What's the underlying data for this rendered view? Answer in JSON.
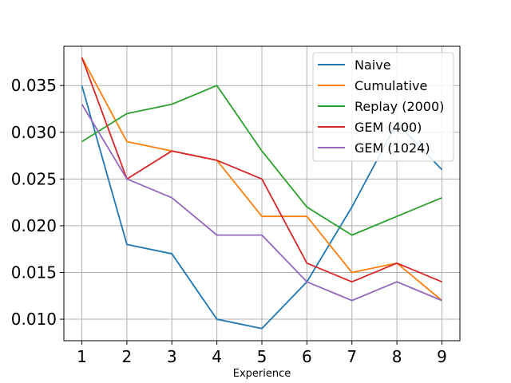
{
  "chart_data": {
    "type": "line",
    "title": "",
    "xlabel": "Experience",
    "ylabel": "",
    "x": [
      1,
      2,
      3,
      4,
      5,
      6,
      7,
      8,
      9
    ],
    "xlim": [
      0.6,
      9.4
    ],
    "ylim": [
      0.0077,
      0.0392
    ],
    "xticks": [
      "1",
      "2",
      "3",
      "4",
      "5",
      "6",
      "7",
      "8",
      "9"
    ],
    "yticks": [
      0.01,
      0.015,
      0.02,
      0.025,
      0.03,
      0.035
    ],
    "ytick_labels": [
      "0.010",
      "0.015",
      "0.020",
      "0.025",
      "0.030",
      "0.035"
    ],
    "grid": true,
    "legend_position": "top-right",
    "series": [
      {
        "name": "Naive",
        "color": "#1f77b4",
        "values": [
          0.035,
          0.018,
          0.017,
          0.01,
          0.009,
          0.014,
          0.022,
          0.031,
          0.026
        ]
      },
      {
        "name": "Cumulative",
        "color": "#ff7f0e",
        "values": [
          0.038,
          0.029,
          0.028,
          0.027,
          0.021,
          0.021,
          0.015,
          0.016,
          0.012
        ]
      },
      {
        "name": "Replay (2000)",
        "color": "#2ca02c",
        "values": [
          0.029,
          0.032,
          0.033,
          0.035,
          0.028,
          0.022,
          0.019,
          0.021,
          0.023
        ]
      },
      {
        "name": "GEM (400)",
        "color": "#d62728",
        "values": [
          0.038,
          0.025,
          0.028,
          0.027,
          0.025,
          0.016,
          0.014,
          0.016,
          0.014
        ]
      },
      {
        "name": "GEM (1024)",
        "color": "#9467bd",
        "values": [
          0.033,
          0.025,
          0.023,
          0.019,
          0.019,
          0.014,
          0.012,
          0.014,
          0.012
        ]
      }
    ]
  }
}
